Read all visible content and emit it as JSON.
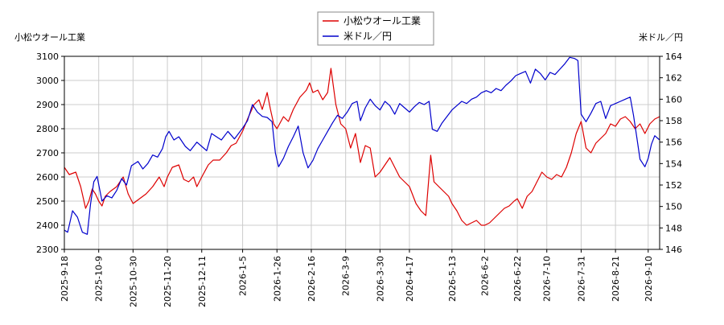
{
  "chart_data": {
    "type": "line",
    "left_axis_title": "小松ウオール工業",
    "right_axis_title": "米ドル／円",
    "y_left": {
      "min": 2300,
      "max": 3100,
      "ticks": [
        2300,
        2400,
        2500,
        2600,
        2700,
        2800,
        2900,
        3000,
        3100
      ]
    },
    "y_right": {
      "min": 146,
      "max": 164,
      "ticks": [
        146,
        148,
        150,
        152,
        154,
        156,
        158,
        160,
        162,
        164
      ]
    },
    "x_range": [
      "2025-09-18",
      "2026-09-17"
    ],
    "x_ticks": [
      "2025-9-18",
      "2025-10-9",
      "2025-10-30",
      "2025-11-20",
      "2025-12-11",
      "2026-1-5",
      "2026-1-26",
      "2026-2-16",
      "2026-3-9",
      "2026-3-30",
      "2026-4-17",
      "2026-5-13",
      "2026-6-2",
      "2026-6-22",
      "2026-7-10",
      "2026-7-31",
      "2026-8-21",
      "2026-9-10"
    ],
    "grid": true,
    "legend_position": "top-center",
    "series": [
      {
        "name": "小松ウオール工業",
        "axis": "left",
        "color": "#dd0000",
        "points": [
          [
            "2025-09-18",
            2640
          ],
          [
            "2025-09-21",
            2610
          ],
          [
            "2025-09-25",
            2620
          ],
          [
            "2025-09-28",
            2560
          ],
          [
            "2025-10-01",
            2470
          ],
          [
            "2025-10-03",
            2500
          ],
          [
            "2025-10-05",
            2550
          ],
          [
            "2025-10-07",
            2530
          ],
          [
            "2025-10-09",
            2500
          ],
          [
            "2025-10-11",
            2480
          ],
          [
            "2025-10-13",
            2520
          ],
          [
            "2025-10-16",
            2540
          ],
          [
            "2025-10-20",
            2560
          ],
          [
            "2025-10-24",
            2600
          ],
          [
            "2025-10-27",
            2530
          ],
          [
            "2025-10-30",
            2490
          ],
          [
            "2025-11-03",
            2510
          ],
          [
            "2025-11-07",
            2530
          ],
          [
            "2025-11-11",
            2560
          ],
          [
            "2025-11-15",
            2600
          ],
          [
            "2025-11-18",
            2560
          ],
          [
            "2025-11-20",
            2600
          ],
          [
            "2025-11-23",
            2640
          ],
          [
            "2025-11-27",
            2650
          ],
          [
            "2025-11-30",
            2590
          ],
          [
            "2025-12-03",
            2580
          ],
          [
            "2025-12-06",
            2600
          ],
          [
            "2025-12-08",
            2560
          ],
          [
            "2025-12-11",
            2600
          ],
          [
            "2025-12-15",
            2650
          ],
          [
            "2025-12-18",
            2670
          ],
          [
            "2025-12-22",
            2670
          ],
          [
            "2025-12-26",
            2700
          ],
          [
            "2025-12-29",
            2730
          ],
          [
            "2026-01-01",
            2740
          ],
          [
            "2026-01-05",
            2790
          ],
          [
            "2026-01-08",
            2840
          ],
          [
            "2026-01-12",
            2900
          ],
          [
            "2026-01-15",
            2920
          ],
          [
            "2026-01-17",
            2880
          ],
          [
            "2026-01-20",
            2950
          ],
          [
            "2026-01-22",
            2880
          ],
          [
            "2026-01-24",
            2820
          ],
          [
            "2026-01-26",
            2800
          ],
          [
            "2026-01-30",
            2850
          ],
          [
            "2026-02-02",
            2830
          ],
          [
            "2026-02-05",
            2880
          ],
          [
            "2026-02-09",
            2930
          ],
          [
            "2026-02-13",
            2960
          ],
          [
            "2026-02-15",
            2990
          ],
          [
            "2026-02-17",
            2950
          ],
          [
            "2026-02-20",
            2960
          ],
          [
            "2026-02-23",
            2920
          ],
          [
            "2026-02-26",
            2950
          ],
          [
            "2026-02-28",
            3050
          ],
          [
            "2026-03-03",
            2900
          ],
          [
            "2026-03-06",
            2820
          ],
          [
            "2026-03-09",
            2800
          ],
          [
            "2026-03-12",
            2720
          ],
          [
            "2026-03-15",
            2780
          ],
          [
            "2026-03-18",
            2660
          ],
          [
            "2026-03-21",
            2730
          ],
          [
            "2026-03-24",
            2720
          ],
          [
            "2026-03-27",
            2600
          ],
          [
            "2026-03-30",
            2620
          ],
          [
            "2026-04-02",
            2650
          ],
          [
            "2026-04-05",
            2680
          ],
          [
            "2026-04-08",
            2640
          ],
          [
            "2026-04-11",
            2600
          ],
          [
            "2026-04-14",
            2580
          ],
          [
            "2026-04-17",
            2560
          ],
          [
            "2026-04-21",
            2490
          ],
          [
            "2026-04-24",
            2460
          ],
          [
            "2026-04-27",
            2440
          ],
          [
            "2026-04-30",
            2690
          ],
          [
            "2026-05-02",
            2580
          ],
          [
            "2026-05-05",
            2560
          ],
          [
            "2026-05-08",
            2540
          ],
          [
            "2026-05-11",
            2520
          ],
          [
            "2026-05-13",
            2490
          ],
          [
            "2026-05-16",
            2460
          ],
          [
            "2026-05-19",
            2420
          ],
          [
            "2026-05-22",
            2400
          ],
          [
            "2026-05-25",
            2410
          ],
          [
            "2026-05-28",
            2420
          ],
          [
            "2026-05-31",
            2400
          ],
          [
            "2026-06-02",
            2400
          ],
          [
            "2026-06-05",
            2410
          ],
          [
            "2026-06-08",
            2430
          ],
          [
            "2026-06-11",
            2450
          ],
          [
            "2026-06-14",
            2470
          ],
          [
            "2026-06-17",
            2480
          ],
          [
            "2026-06-20",
            2500
          ],
          [
            "2026-06-22",
            2510
          ],
          [
            "2026-06-25",
            2470
          ],
          [
            "2026-06-28",
            2520
          ],
          [
            "2026-07-01",
            2540
          ],
          [
            "2026-07-04",
            2580
          ],
          [
            "2026-07-07",
            2620
          ],
          [
            "2026-07-10",
            2600
          ],
          [
            "2026-07-13",
            2590
          ],
          [
            "2026-07-16",
            2610
          ],
          [
            "2026-07-19",
            2600
          ],
          [
            "2026-07-22",
            2640
          ],
          [
            "2026-07-25",
            2700
          ],
          [
            "2026-07-28",
            2780
          ],
          [
            "2026-07-31",
            2830
          ],
          [
            "2026-08-03",
            2720
          ],
          [
            "2026-08-06",
            2700
          ],
          [
            "2026-08-09",
            2740
          ],
          [
            "2026-08-12",
            2760
          ],
          [
            "2026-08-15",
            2780
          ],
          [
            "2026-08-18",
            2820
          ],
          [
            "2026-08-21",
            2810
          ],
          [
            "2026-08-24",
            2840
          ],
          [
            "2026-08-27",
            2850
          ],
          [
            "2026-08-30",
            2830
          ],
          [
            "2026-09-02",
            2800
          ],
          [
            "2026-09-05",
            2820
          ],
          [
            "2026-09-08",
            2780
          ],
          [
            "2026-09-11",
            2820
          ],
          [
            "2026-09-14",
            2840
          ],
          [
            "2026-09-17",
            2850
          ]
        ]
      },
      {
        "name": "米ドル／円",
        "axis": "right",
        "color": "#0000cc",
        "points": [
          [
            "2025-09-18",
            147.8
          ],
          [
            "2025-09-20",
            147.6
          ],
          [
            "2025-09-23",
            149.6
          ],
          [
            "2025-09-26",
            149.0
          ],
          [
            "2025-09-29",
            147.6
          ],
          [
            "2025-10-02",
            147.4
          ],
          [
            "2025-10-04",
            150.2
          ],
          [
            "2025-10-06",
            152.3
          ],
          [
            "2025-10-08",
            152.8
          ],
          [
            "2025-10-11",
            150.5
          ],
          [
            "2025-10-14",
            151.0
          ],
          [
            "2025-10-17",
            150.8
          ],
          [
            "2025-10-20",
            151.5
          ],
          [
            "2025-10-23",
            152.6
          ],
          [
            "2025-10-26",
            152.0
          ],
          [
            "2025-10-29",
            153.8
          ],
          [
            "2025-11-02",
            154.2
          ],
          [
            "2025-11-05",
            153.5
          ],
          [
            "2025-11-08",
            154.0
          ],
          [
            "2025-11-11",
            154.8
          ],
          [
            "2025-11-14",
            154.6
          ],
          [
            "2025-11-17",
            155.4
          ],
          [
            "2025-11-19",
            156.5
          ],
          [
            "2025-11-21",
            157.0
          ],
          [
            "2025-11-24",
            156.2
          ],
          [
            "2025-11-27",
            156.5
          ],
          [
            "2025-12-01",
            155.6
          ],
          [
            "2025-12-04",
            155.2
          ],
          [
            "2025-12-08",
            156.0
          ],
          [
            "2025-12-11",
            155.6
          ],
          [
            "2025-12-14",
            155.2
          ],
          [
            "2025-12-17",
            156.8
          ],
          [
            "2025-12-20",
            156.5
          ],
          [
            "2025-12-23",
            156.2
          ],
          [
            "2025-12-27",
            157.0
          ],
          [
            "2025-12-31",
            156.3
          ],
          [
            "2026-01-05",
            157.3
          ],
          [
            "2026-01-08",
            158.0
          ],
          [
            "2026-01-11",
            159.5
          ],
          [
            "2026-01-14",
            158.8
          ],
          [
            "2026-01-17",
            158.4
          ],
          [
            "2026-01-20",
            158.3
          ],
          [
            "2026-01-23",
            157.9
          ],
          [
            "2026-01-25",
            155.0
          ],
          [
            "2026-01-27",
            153.7
          ],
          [
            "2026-01-30",
            154.5
          ],
          [
            "2026-02-02",
            155.6
          ],
          [
            "2026-02-05",
            156.5
          ],
          [
            "2026-02-08",
            157.5
          ],
          [
            "2026-02-11",
            155.0
          ],
          [
            "2026-02-14",
            153.6
          ],
          [
            "2026-02-17",
            154.3
          ],
          [
            "2026-02-20",
            155.4
          ],
          [
            "2026-02-23",
            156.2
          ],
          [
            "2026-02-26",
            157.0
          ],
          [
            "2026-03-01",
            157.8
          ],
          [
            "2026-03-04",
            158.5
          ],
          [
            "2026-03-07",
            158.2
          ],
          [
            "2026-03-10",
            158.8
          ],
          [
            "2026-03-13",
            159.6
          ],
          [
            "2026-03-16",
            159.8
          ],
          [
            "2026-03-18",
            158.0
          ],
          [
            "2026-03-21",
            159.2
          ],
          [
            "2026-03-24",
            160.0
          ],
          [
            "2026-03-27",
            159.4
          ],
          [
            "2026-03-30",
            159.0
          ],
          [
            "2026-04-02",
            159.8
          ],
          [
            "2026-04-05",
            159.4
          ],
          [
            "2026-04-08",
            158.6
          ],
          [
            "2026-04-11",
            159.6
          ],
          [
            "2026-04-14",
            159.2
          ],
          [
            "2026-04-17",
            158.8
          ],
          [
            "2026-04-20",
            159.3
          ],
          [
            "2026-04-23",
            159.7
          ],
          [
            "2026-04-26",
            159.5
          ],
          [
            "2026-04-29",
            159.8
          ],
          [
            "2026-05-01",
            157.2
          ],
          [
            "2026-05-04",
            157.0
          ],
          [
            "2026-05-07",
            157.8
          ],
          [
            "2026-05-10",
            158.4
          ],
          [
            "2026-05-13",
            159.0
          ],
          [
            "2026-05-16",
            159.4
          ],
          [
            "2026-05-19",
            159.8
          ],
          [
            "2026-05-22",
            159.6
          ],
          [
            "2026-05-25",
            160.0
          ],
          [
            "2026-05-28",
            160.2
          ],
          [
            "2026-05-31",
            160.6
          ],
          [
            "2026-06-03",
            160.8
          ],
          [
            "2026-06-06",
            160.6
          ],
          [
            "2026-06-09",
            161.0
          ],
          [
            "2026-06-12",
            160.8
          ],
          [
            "2026-06-15",
            161.3
          ],
          [
            "2026-06-18",
            161.7
          ],
          [
            "2026-06-21",
            162.2
          ],
          [
            "2026-06-24",
            162.4
          ],
          [
            "2026-06-27",
            162.6
          ],
          [
            "2026-06-30",
            161.5
          ],
          [
            "2026-07-03",
            162.8
          ],
          [
            "2026-07-06",
            162.4
          ],
          [
            "2026-07-09",
            161.8
          ],
          [
            "2026-07-12",
            162.5
          ],
          [
            "2026-07-15",
            162.3
          ],
          [
            "2026-07-18",
            162.8
          ],
          [
            "2026-07-21",
            163.3
          ],
          [
            "2026-07-24",
            163.9
          ],
          [
            "2026-07-27",
            163.8
          ],
          [
            "2026-07-29",
            163.6
          ],
          [
            "2026-07-31",
            158.6
          ],
          [
            "2026-08-03",
            157.9
          ],
          [
            "2026-08-06",
            158.7
          ],
          [
            "2026-08-09",
            159.6
          ],
          [
            "2026-08-12",
            159.8
          ],
          [
            "2026-08-15",
            158.2
          ],
          [
            "2026-08-18",
            159.4
          ],
          [
            "2026-08-21",
            159.6
          ],
          [
            "2026-08-24",
            159.8
          ],
          [
            "2026-08-27",
            160.0
          ],
          [
            "2026-08-30",
            160.2
          ],
          [
            "2026-09-01",
            158.5
          ],
          [
            "2026-09-03",
            156.5
          ],
          [
            "2026-09-05",
            154.4
          ],
          [
            "2026-09-08",
            153.7
          ],
          [
            "2026-09-10",
            154.5
          ],
          [
            "2026-09-12",
            155.8
          ],
          [
            "2026-09-14",
            156.6
          ],
          [
            "2026-09-17",
            156.2
          ]
        ]
      }
    ]
  }
}
